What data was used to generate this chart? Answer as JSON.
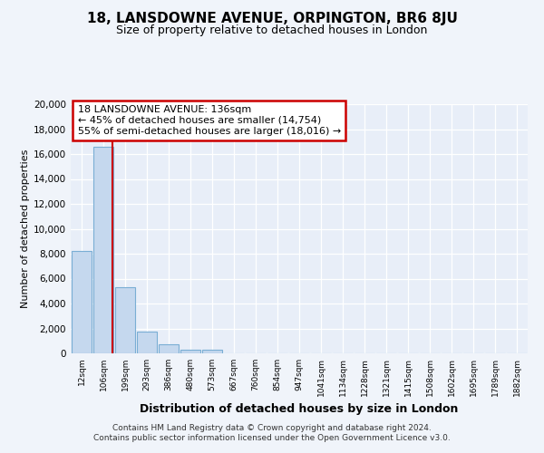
{
  "title": "18, LANSDOWNE AVENUE, ORPINGTON, BR6 8JU",
  "subtitle": "Size of property relative to detached houses in London",
  "xlabel": "Distribution of detached houses by size in London",
  "ylabel": "Number of detached properties",
  "categories": [
    "12sqm",
    "106sqm",
    "199sqm",
    "293sqm",
    "386sqm",
    "480sqm",
    "573sqm",
    "667sqm",
    "760sqm",
    "854sqm",
    "947sqm",
    "1041sqm",
    "1134sqm",
    "1228sqm",
    "1321sqm",
    "1415sqm",
    "1508sqm",
    "1602sqm",
    "1695sqm",
    "1789sqm",
    "1882sqm"
  ],
  "values": [
    8200,
    16600,
    5300,
    1750,
    750,
    280,
    280,
    0,
    0,
    0,
    0,
    0,
    0,
    0,
    0,
    0,
    0,
    0,
    0,
    0,
    0
  ],
  "bar_color": "#c5d8ee",
  "bar_edge_color": "#7aaed4",
  "red_line_x": 1.42,
  "annotation_text": "18 LANSDOWNE AVENUE: 136sqm\n← 45% of detached houses are smaller (14,754)\n55% of semi-detached houses are larger (18,016) →",
  "annotation_box_color": "white",
  "annotation_box_edge_color": "#cc0000",
  "red_line_color": "#cc0000",
  "ylim": [
    0,
    20000
  ],
  "yticks": [
    0,
    2000,
    4000,
    6000,
    8000,
    10000,
    12000,
    14000,
    16000,
    18000,
    20000
  ],
  "footnote": "Contains HM Land Registry data © Crown copyright and database right 2024.\nContains public sector information licensed under the Open Government Licence v3.0.",
  "bg_color": "#f0f4fa",
  "plot_bg_color": "#e8eef8",
  "title_fontsize": 11,
  "subtitle_fontsize": 9,
  "annotation_fontsize": 8,
  "footnote_fontsize": 6.5,
  "ylabel_fontsize": 8,
  "xlabel_fontsize": 9
}
